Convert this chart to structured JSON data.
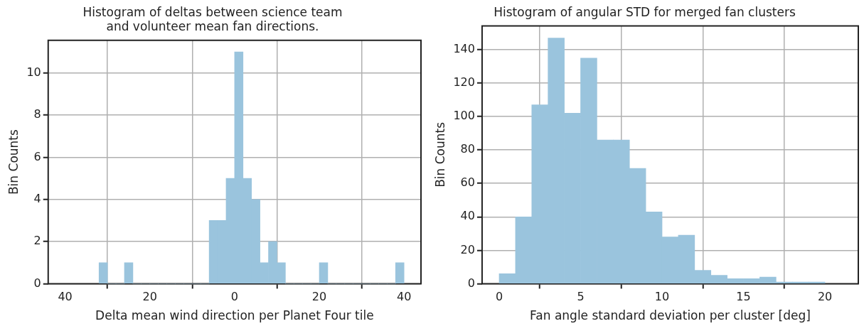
{
  "chart_data": [
    {
      "type": "histogram",
      "title": "Histogram of deltas between science team\nand volunteer mean fan directions.",
      "xlabel": "Delta mean wind direction per Planet Four tile",
      "ylabel": "Bin Counts",
      "color": "#9ac4dd",
      "bins": [
        -32,
        -30,
        -28,
        -26,
        -24,
        -22,
        -20,
        -18,
        -16,
        -14,
        -12,
        -10,
        -8,
        -6,
        -4,
        -2,
        0,
        2,
        4,
        6,
        8,
        10,
        12,
        14,
        16,
        18,
        20,
        22,
        24,
        26,
        28,
        30,
        32,
        34,
        36,
        38,
        40
      ],
      "values": [
        1,
        0,
        0,
        1,
        0,
        0,
        0,
        0,
        0,
        0,
        0,
        0,
        0,
        3,
        3,
        5,
        11,
        5,
        4,
        1,
        2,
        1,
        0,
        0,
        0,
        0,
        1,
        0,
        0,
        0,
        0,
        0,
        0,
        0,
        0,
        1
      ],
      "xlim": [
        -44,
        44
      ],
      "xticks": [
        {
          "value": -40,
          "label": "40"
        },
        {
          "value": -20,
          "label": "20"
        },
        0,
        20,
        40
      ],
      "ylim": [
        0,
        11.55
      ],
      "yticks": [
        0,
        2,
        4,
        6,
        8,
        10
      ],
      "grid": true
    },
    {
      "type": "histogram",
      "title": "Histogram of angular STD for merged fan clusters",
      "xlabel": "Fan angle standard deviation per cluster [deg]",
      "ylabel": "Bin Counts",
      "color": "#9ac4dd",
      "bins": [
        0,
        1,
        2,
        3,
        4,
        5,
        6,
        7,
        8,
        9,
        10,
        11,
        12,
        13,
        14,
        15,
        16,
        17,
        18,
        19,
        20
      ],
      "values": [
        6,
        40,
        107,
        147,
        102,
        135,
        86,
        86,
        69,
        43,
        28,
        29,
        8,
        5,
        3,
        3,
        4,
        1,
        1,
        1
      ],
      "xlim": [
        -1.05,
        22.05
      ],
      "xticks": [
        0,
        5,
        10,
        15,
        20
      ],
      "ylim": [
        0,
        154.3
      ],
      "yticks": [
        0,
        20,
        40,
        60,
        80,
        100,
        120,
        140
      ],
      "grid": true
    }
  ]
}
